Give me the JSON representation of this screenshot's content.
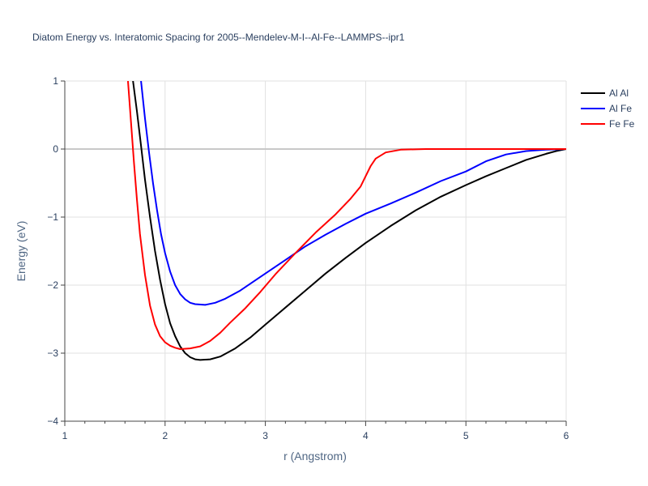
{
  "chart_data": {
    "type": "line",
    "title": "Diatom Energy vs. Interatomic Spacing for 2005--Mendelev-M-I--Al-Fe--LAMMPS--ipr1",
    "xlabel": "r (Angstrom)",
    "ylabel": "Energy (eV)",
    "xlim": [
      1,
      6
    ],
    "ylim": [
      -4,
      1
    ],
    "x_ticks": [
      1,
      2,
      3,
      4,
      5,
      6
    ],
    "y_ticks": [
      1,
      0,
      -1,
      -2,
      -3,
      -4
    ],
    "x_tick_labels": [
      "1",
      "2",
      "3",
      "4",
      "5",
      "6"
    ],
    "y_tick_labels": [
      "1",
      "0",
      "−1",
      "−2",
      "−3",
      "−4"
    ],
    "grid": true,
    "legend_position": "top-right",
    "series": [
      {
        "name": "Al Al",
        "color": "#000000",
        "points": [
          [
            1.68,
            1.0
          ],
          [
            1.72,
            0.55
          ],
          [
            1.76,
            0.05
          ],
          [
            1.8,
            -0.45
          ],
          [
            1.85,
            -1.0
          ],
          [
            1.9,
            -1.5
          ],
          [
            1.95,
            -1.92
          ],
          [
            2.0,
            -2.28
          ],
          [
            2.05,
            -2.56
          ],
          [
            2.1,
            -2.75
          ],
          [
            2.15,
            -2.9
          ],
          [
            2.2,
            -3.0
          ],
          [
            2.25,
            -3.06
          ],
          [
            2.3,
            -3.09
          ],
          [
            2.35,
            -3.1
          ],
          [
            2.45,
            -3.09
          ],
          [
            2.55,
            -3.05
          ],
          [
            2.7,
            -2.93
          ],
          [
            2.85,
            -2.77
          ],
          [
            3.0,
            -2.58
          ],
          [
            3.2,
            -2.33
          ],
          [
            3.4,
            -2.08
          ],
          [
            3.6,
            -1.83
          ],
          [
            3.8,
            -1.6
          ],
          [
            4.0,
            -1.38
          ],
          [
            4.25,
            -1.13
          ],
          [
            4.5,
            -0.9
          ],
          [
            4.75,
            -0.7
          ],
          [
            5.0,
            -0.53
          ],
          [
            5.2,
            -0.4
          ],
          [
            5.4,
            -0.28
          ],
          [
            5.6,
            -0.16
          ],
          [
            5.8,
            -0.07
          ],
          [
            5.9,
            -0.03
          ],
          [
            6.0,
            0.0
          ]
        ]
      },
      {
        "name": "Al Fe",
        "color": "#0000ff",
        "points": [
          [
            1.76,
            1.0
          ],
          [
            1.8,
            0.45
          ],
          [
            1.84,
            -0.05
          ],
          [
            1.88,
            -0.5
          ],
          [
            1.92,
            -0.9
          ],
          [
            1.96,
            -1.25
          ],
          [
            2.0,
            -1.53
          ],
          [
            2.05,
            -1.8
          ],
          [
            2.1,
            -2.0
          ],
          [
            2.15,
            -2.13
          ],
          [
            2.2,
            -2.21
          ],
          [
            2.25,
            -2.26
          ],
          [
            2.3,
            -2.28
          ],
          [
            2.4,
            -2.29
          ],
          [
            2.5,
            -2.26
          ],
          [
            2.6,
            -2.2
          ],
          [
            2.75,
            -2.08
          ],
          [
            2.9,
            -1.93
          ],
          [
            3.0,
            -1.83
          ],
          [
            3.2,
            -1.63
          ],
          [
            3.4,
            -1.43
          ],
          [
            3.6,
            -1.26
          ],
          [
            3.8,
            -1.1
          ],
          [
            4.0,
            -0.95
          ],
          [
            4.25,
            -0.8
          ],
          [
            4.5,
            -0.64
          ],
          [
            4.75,
            -0.47
          ],
          [
            5.0,
            -0.33
          ],
          [
            5.2,
            -0.18
          ],
          [
            5.4,
            -0.08
          ],
          [
            5.6,
            -0.03
          ],
          [
            5.8,
            -0.01
          ],
          [
            6.0,
            0.0
          ]
        ]
      },
      {
        "name": "Fe Fe",
        "color": "#ff0000",
        "points": [
          [
            1.63,
            1.0
          ],
          [
            1.66,
            0.4
          ],
          [
            1.69,
            -0.2
          ],
          [
            1.72,
            -0.75
          ],
          [
            1.75,
            -1.25
          ],
          [
            1.8,
            -1.85
          ],
          [
            1.85,
            -2.3
          ],
          [
            1.9,
            -2.58
          ],
          [
            1.95,
            -2.75
          ],
          [
            2.0,
            -2.84
          ],
          [
            2.05,
            -2.89
          ],
          [
            2.1,
            -2.92
          ],
          [
            2.15,
            -2.94
          ],
          [
            2.25,
            -2.93
          ],
          [
            2.35,
            -2.9
          ],
          [
            2.45,
            -2.82
          ],
          [
            2.55,
            -2.7
          ],
          [
            2.65,
            -2.55
          ],
          [
            2.8,
            -2.34
          ],
          [
            2.95,
            -2.1
          ],
          [
            3.1,
            -1.84
          ],
          [
            3.3,
            -1.53
          ],
          [
            3.5,
            -1.23
          ],
          [
            3.7,
            -0.96
          ],
          [
            3.85,
            -0.73
          ],
          [
            3.95,
            -0.55
          ],
          [
            4.0,
            -0.4
          ],
          [
            4.05,
            -0.25
          ],
          [
            4.1,
            -0.14
          ],
          [
            4.2,
            -0.05
          ],
          [
            4.35,
            -0.01
          ],
          [
            4.6,
            0.0
          ],
          [
            5.0,
            0.0
          ],
          [
            6.0,
            0.0
          ]
        ]
      }
    ]
  }
}
